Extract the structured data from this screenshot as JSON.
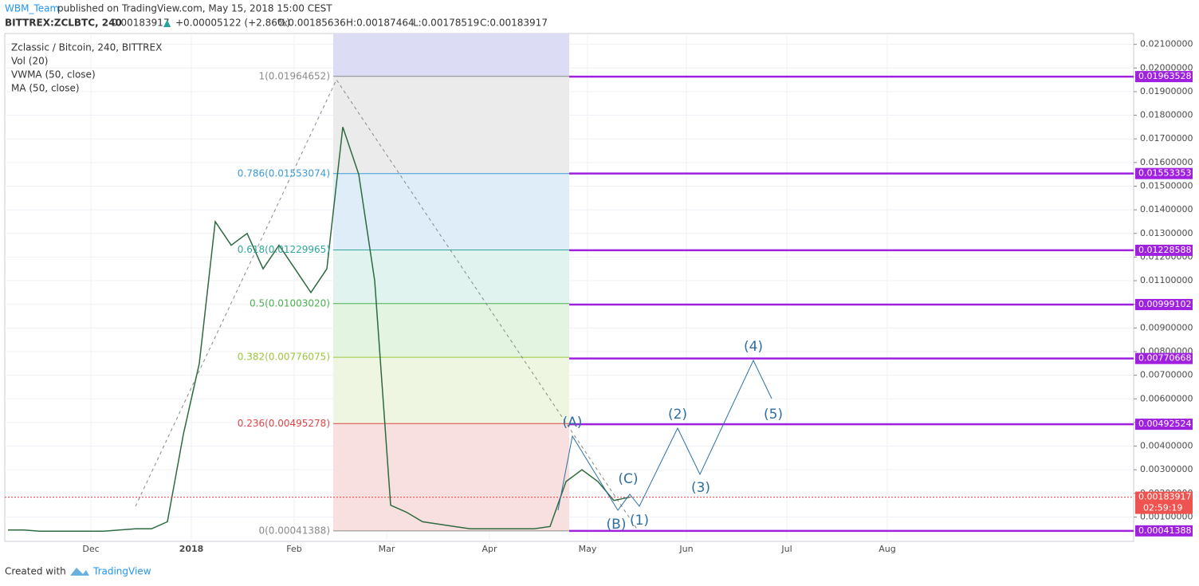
{
  "chart_data": {
    "type": "line",
    "header": {
      "user": "WBM_Team",
      "published": "published on TradingView.com, May 15, 2018 15:00 CEST",
      "symbol": "BITTREX:ZCLBTC, 240",
      "price": "0.00183917",
      "arrow": "▲",
      "change": "+0.00005122 (+2.86%)",
      "open": "O:0.00185636",
      "high": "H:0.00187464",
      "low": "L:0.00178519",
      "close": "C:0.00183917"
    },
    "indicators": [
      "Vol (20)",
      "VWMA (50, close)",
      "MA (50, close)"
    ],
    "series": [
      {
        "name": "Zclassic / Bitcoin, 240, BITTREX",
        "color": "#2d6a3f",
        "values": [
          0.00045,
          0.00045,
          0.0004,
          0.0004,
          0.0004,
          0.0004,
          0.0004,
          0.00045,
          0.0005,
          0.0005,
          0.0008,
          0.0045,
          0.0075,
          0.0135,
          0.0125,
          0.013,
          0.0115,
          0.0125,
          0.0115,
          0.0105,
          0.0115,
          0.0175,
          0.0155,
          0.011,
          0.0015,
          0.0012,
          0.0008,
          0.0007,
          0.0006,
          0.0005,
          0.0005,
          0.0005,
          0.0005,
          0.0005,
          0.0006,
          0.0025,
          0.003,
          0.0025,
          0.0017,
          0.00184
        ]
      }
    ],
    "xticks": [
      "Dec",
      "2018",
      "Feb",
      "Mar",
      "Apr",
      "May",
      "Jun",
      "Jul",
      "Aug"
    ],
    "ylim": [
      -3e-05,
      0.02146
    ],
    "yticks": [
      {
        "value": 0.001,
        "label": "0.00100000"
      },
      {
        "value": 0.002,
        "label": "0.00200000"
      },
      {
        "value": 0.003,
        "label": "0.00300000"
      },
      {
        "value": 0.004,
        "label": "0.00400000"
      },
      {
        "value": 0.005,
        "label": "0.00500000"
      },
      {
        "value": 0.006,
        "label": "0.00600000"
      },
      {
        "value": 0.007,
        "label": "0.00700000"
      },
      {
        "value": 0.008,
        "label": "0.00800000"
      },
      {
        "value": 0.009,
        "label": "0.00900000"
      },
      {
        "value": 0.01,
        "label": "0.01000000"
      },
      {
        "value": 0.011,
        "label": "0.01100000"
      },
      {
        "value": 0.012,
        "label": "0.01200000"
      },
      {
        "value": 0.013,
        "label": "0.01300000"
      },
      {
        "value": 0.014,
        "label": "0.01400000"
      },
      {
        "value": 0.015,
        "label": "0.01500000"
      },
      {
        "value": 0.016,
        "label": "0.01600000"
      },
      {
        "value": 0.017,
        "label": "0.01700000"
      },
      {
        "value": 0.018,
        "label": "0.01800000"
      },
      {
        "value": 0.019,
        "label": "0.01900000"
      },
      {
        "value": 0.02,
        "label": "0.02000000"
      },
      {
        "value": 0.021,
        "label": "0.02100000"
      }
    ],
    "grid": true,
    "fib_levels": [
      {
        "label": "1(0.01964652)",
        "value": 0.01964652,
        "color": "#8a8a8a",
        "zone": "#ebebeb"
      },
      {
        "label": "0.786(0.01553074)",
        "value": 0.01553074,
        "color": "#3c9ad6",
        "zone": "#dfedf9"
      },
      {
        "label": "0.618(0.01229965)",
        "value": 0.01229965,
        "color": "#2fa89a",
        "zone": "#e0f3ef"
      },
      {
        "label": "0.5(0.01003020)",
        "value": 0.0100302,
        "color": "#4caf50",
        "zone": "#e3f4e0"
      },
      {
        "label": "0.382(0.00776075)",
        "value": 0.00776075,
        "color": "#9bc53d",
        "zone": "#eef6e2"
      },
      {
        "label": "0.236(0.00495278)",
        "value": 0.00495278,
        "color": "#e04545",
        "zone": "#f8e0e0"
      },
      {
        "label": "0(0.00041388)",
        "value": 0.00041388,
        "color": "#8a8a8a",
        "zone": null
      }
    ],
    "price_lines": [
      0.01963528,
      0.01553353,
      0.01228588,
      0.00999102,
      0.00770668,
      0.00492524,
      0.00041388
    ],
    "price_line_color": "#a020e0",
    "last_price": 0.00183917,
    "countdown": "02:59:19",
    "waves": [
      "(A)",
      "(B)",
      "(C)",
      "(1)",
      "(2)",
      "(3)",
      "(4)",
      "(5)"
    ],
    "footer": {
      "created": "Created with",
      "brand": "TradingView"
    }
  }
}
